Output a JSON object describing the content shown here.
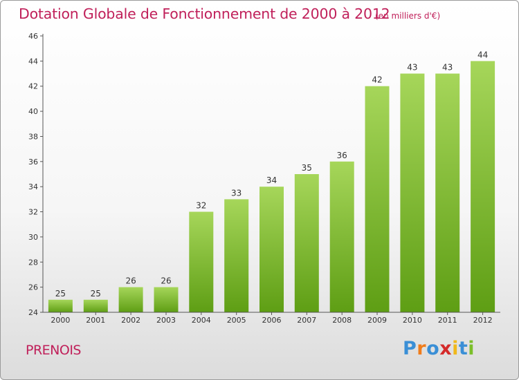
{
  "header": {
    "title": "Dotation Globale de Fonctionnement de 2000 à 2012",
    "subtitle": "(en milliers d'€)"
  },
  "footer": {
    "town": "PRENOIS",
    "logo_text": "Proxiti",
    "logo_letters": [
      "P",
      "r",
      "o",
      "x",
      "i",
      "t",
      "i"
    ],
    "logo_colors": [
      "#3a8fd6",
      "#f07c1b",
      "#3a8fd6",
      "#d42a2a",
      "#f0b81b",
      "#3a8fd6",
      "#7bbf2a"
    ]
  },
  "colors": {
    "accent": "#c0205a",
    "bar_top": "#a6d65a",
    "bar_bottom": "#5e9e14",
    "axis": "#555555"
  },
  "chart_data": {
    "type": "bar",
    "title": "Dotation Globale de Fonctionnement de 2000 à 2012",
    "subtitle": "(en milliers d'€)",
    "categories": [
      "2000",
      "2001",
      "2002",
      "2003",
      "2004",
      "2005",
      "2006",
      "2007",
      "2008",
      "2009",
      "2010",
      "2011",
      "2012"
    ],
    "values": [
      25,
      25,
      26,
      26,
      32,
      33,
      34,
      35,
      36,
      42,
      43,
      43,
      44
    ],
    "ylim": [
      24,
      46
    ],
    "yticks": [
      24,
      26,
      28,
      30,
      32,
      34,
      36,
      38,
      40,
      42,
      44,
      46
    ],
    "data_labels": true,
    "grid": false,
    "legend": "none"
  }
}
